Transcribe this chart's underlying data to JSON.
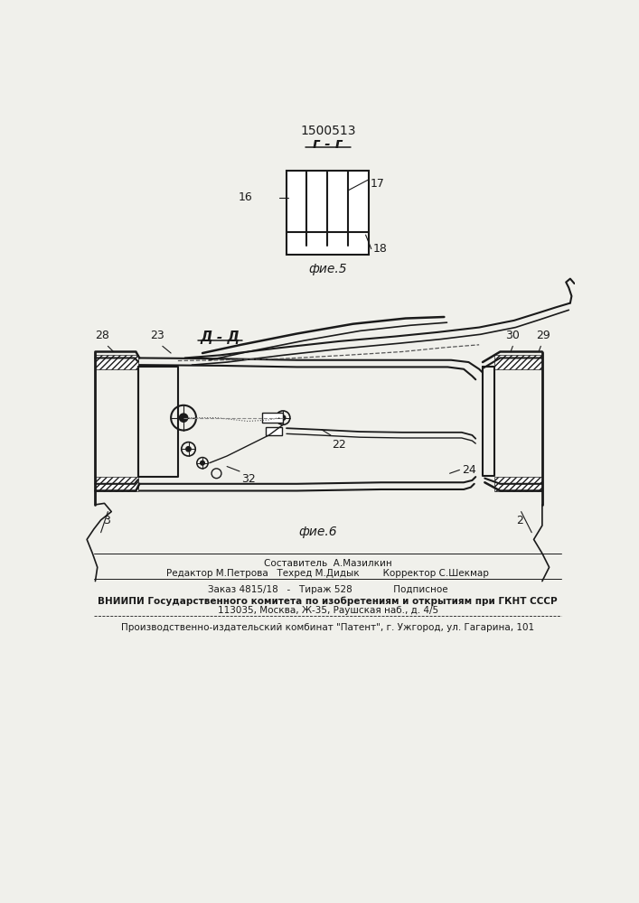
{
  "patent_number": "1500513",
  "fig5_label": "г - г",
  "fig5_caption": "фие.5",
  "fig6_label": "Д - Д",
  "fig6_caption": "фие.6",
  "footer_line1": "Составитель  А.Мазилкин",
  "footer_line2": "Редактор М.Петрова   Техред М.Дидык        Корректор С.Шекмар",
  "footer_line3": "Заказ 4815/18   -   Тираж 528              Подписное",
  "footer_line4": "ВНИИПИ Государственного комитета по изобретениям и открытиям при ГКНТ СССР",
  "footer_line5": "113035, Москва, Ж-35, Раушская наб., д. 4/5",
  "footer_line6": "Производственно-издательский комбинат \"Патент\", г. Ужгород, ул. Гагарина, 101",
  "bg_color": "#f0f0eb",
  "line_color": "#1a1a1a"
}
